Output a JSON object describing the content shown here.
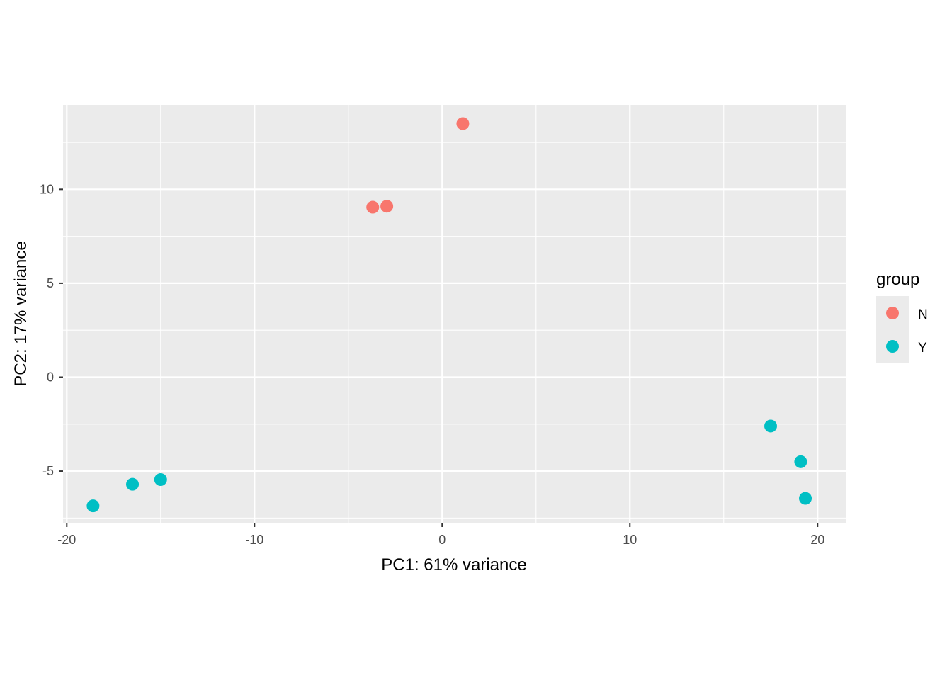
{
  "chart_data": {
    "type": "scatter",
    "title": "",
    "xlabel": "PC1: 61% variance",
    "ylabel": "PC2: 17% variance",
    "xlim": [
      -20.2,
      21.5
    ],
    "ylim": [
      -7.75,
      14.5
    ],
    "xticks": [
      -20,
      -10,
      0,
      10,
      20
    ],
    "xtick_labels": [
      "-20",
      "-10",
      "0",
      "10",
      "20"
    ],
    "yticks": [
      -5,
      0,
      5,
      10
    ],
    "ytick_labels": [
      "-5",
      "0",
      "5",
      "10"
    ],
    "grid": true,
    "legend": {
      "title": "group",
      "placement": "right"
    },
    "series": [
      {
        "name": "N",
        "color": "#F8766D",
        "points": [
          {
            "x": 1.1,
            "y": 13.5
          },
          {
            "x": -3.7,
            "y": 9.05
          },
          {
            "x": -2.95,
            "y": 9.1
          }
        ]
      },
      {
        "name": "Y",
        "color": "#00BFC4",
        "points": [
          {
            "x": -18.6,
            "y": -6.85
          },
          {
            "x": -16.5,
            "y": -5.7
          },
          {
            "x": -15.0,
            "y": -5.45
          },
          {
            "x": 17.5,
            "y": -2.6
          },
          {
            "x": 19.1,
            "y": -4.5
          },
          {
            "x": 19.35,
            "y": -6.45
          }
        ]
      }
    ]
  }
}
